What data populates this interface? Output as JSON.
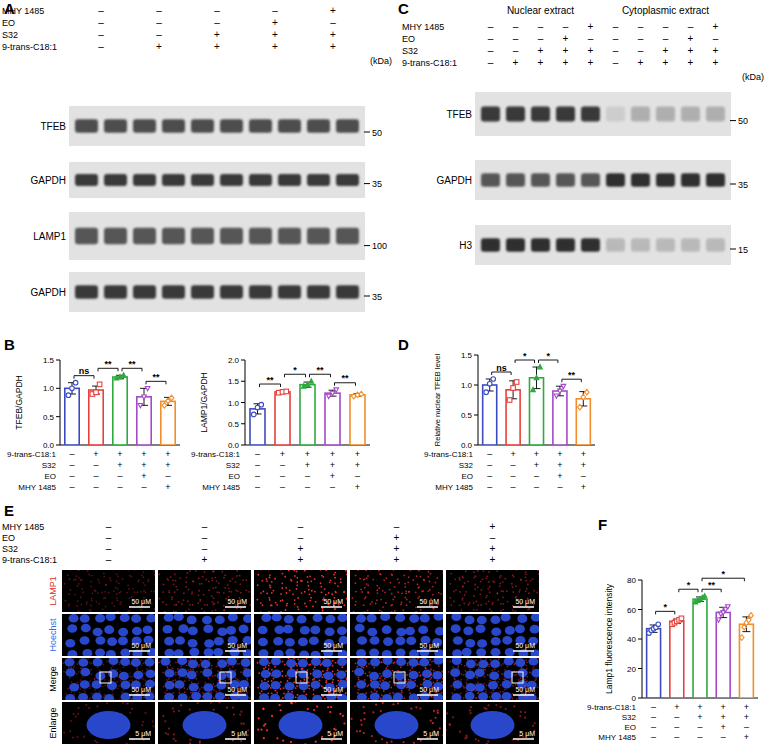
{
  "panel_labels": [
    "A",
    "B",
    "C",
    "D",
    "E",
    "F"
  ],
  "blot_A": {
    "treatments": [
      {
        "name": "MHY 1485",
        "signs": [
          "–",
          "–",
          "–",
          "–",
          "+"
        ]
      },
      {
        "name": "EO",
        "signs": [
          "–",
          "–",
          "–",
          "+",
          "–"
        ]
      },
      {
        "name": "S32",
        "signs": [
          "–",
          "–",
          "+",
          "+",
          "+"
        ]
      },
      {
        "name": "9-trans-C18:1",
        "signs": [
          "–",
          "+",
          "+",
          "+",
          "+"
        ]
      }
    ],
    "unit": "(kDa)",
    "rows": [
      {
        "label": "TFEB",
        "marker": 50
      },
      {
        "label": "GAPDH",
        "marker": 35
      },
      {
        "label": "LAMP1",
        "marker": 100
      },
      {
        "label": "GAPDH",
        "marker": 35
      }
    ]
  },
  "blot_C": {
    "headers": [
      "Nuclear extract",
      "Cytoplasmic extract"
    ],
    "treatments": [
      {
        "name": "MHY 1485",
        "signs": [
          "–",
          "–",
          "–",
          "–",
          "+",
          "–",
          "–",
          "–",
          "–",
          "+"
        ]
      },
      {
        "name": "EO",
        "signs": [
          "–",
          "–",
          "–",
          "+",
          "–",
          "–",
          "–",
          "–",
          "+",
          "–"
        ]
      },
      {
        "name": "S32",
        "signs": [
          "–",
          "–",
          "+",
          "+",
          "+",
          "–",
          "–",
          "+",
          "+",
          "+"
        ]
      },
      {
        "name": "9-trans-C18:1",
        "signs": [
          "–",
          "+",
          "+",
          "+",
          "+",
          "–",
          "+",
          "+",
          "+",
          "+"
        ]
      }
    ],
    "unit": "(kDa)",
    "rows": [
      {
        "label": "TFEB",
        "marker": 50
      },
      {
        "label": "GAPDH",
        "marker": 35
      },
      {
        "label": "H3",
        "marker": 15
      }
    ]
  },
  "images_E": {
    "treatments": [
      {
        "name": "MHY 1485",
        "signs": [
          "–",
          "–",
          "–",
          "–",
          "+"
        ]
      },
      {
        "name": "EO",
        "signs": [
          "–",
          "–",
          "–",
          "+",
          "–"
        ]
      },
      {
        "name": "S32",
        "signs": [
          "–",
          "–",
          "+",
          "+",
          "+"
        ]
      },
      {
        "name": "9-trans-C18:1",
        "signs": [
          "–",
          "+",
          "+",
          "+",
          "+"
        ]
      }
    ],
    "rows": [
      "LAMP1",
      "Hoechst",
      "Merge",
      "Enlarge"
    ],
    "scale_bars": [
      "50 μM",
      "50 μM",
      "50 μM",
      "5 μM"
    ]
  },
  "chart_data": [
    {
      "type": "bar",
      "y_label": "TFEB/GAPDH",
      "categories": [
        null,
        null,
        null,
        null,
        null
      ],
      "values": [
        1.0,
        0.97,
        1.2,
        0.85,
        0.77
      ],
      "errors": [
        0.1,
        0.07,
        0.03,
        0.15,
        0.07
      ],
      "points": [
        [
          0.88,
          1.0,
          1.1
        ],
        [
          0.9,
          0.93,
          1.07
        ],
        [
          1.18,
          1.2,
          1.23
        ],
        [
          0.7,
          0.85,
          1.0
        ],
        [
          0.7,
          0.78,
          0.83
        ]
      ],
      "colors": [
        "#3b4cc0",
        "#e8413b",
        "#2faa3f",
        "#a64ac9",
        "#f28e2b"
      ],
      "marker": [
        "circle",
        "square",
        "triangle",
        "triangle-down",
        "diamond"
      ],
      "ylim": [
        0,
        1.5
      ],
      "yticks": [
        {
          "value": 0,
          "label": "0.0"
        },
        {
          "value": 0.5,
          "label": "0.5"
        },
        {
          "value": 1.0,
          "label": "1.0"
        },
        {
          "value": 1.5,
          "label": "1.5"
        }
      ],
      "conditions": [
        {
          "name": "9-trans-C18:1",
          "signs": [
            "–",
            "+",
            "+",
            "+",
            "+"
          ]
        },
        {
          "name": "S32",
          "signs": [
            "–",
            "–",
            "+",
            "+",
            "+"
          ]
        },
        {
          "name": "EO",
          "signs": [
            "–",
            "–",
            "–",
            "+",
            "–"
          ]
        },
        {
          "name": "MHY 1485",
          "signs": [
            "–",
            "–",
            "–",
            "–",
            "+"
          ]
        }
      ],
      "annotations": [
        {
          "text": "ns",
          "from": 0,
          "to": 1
        },
        {
          "text": "**",
          "from": 1,
          "to": 2
        },
        {
          "text": "**",
          "from": 2,
          "to": 3
        },
        {
          "text": "**",
          "from": 3,
          "to": 4
        }
      ]
    },
    {
      "type": "bar",
      "y_label": "LAMP1/GAPDH",
      "categories": [
        null,
        null,
        null,
        null,
        null
      ],
      "values": [
        0.85,
        1.25,
        1.42,
        1.22,
        1.18
      ],
      "errors": [
        0.12,
        0.02,
        0.06,
        0.07,
        0.03
      ],
      "points": [
        [
          0.72,
          0.88,
          0.95
        ],
        [
          1.23,
          1.25,
          1.26
        ],
        [
          1.38,
          1.42,
          1.5
        ],
        [
          1.15,
          1.22,
          1.3
        ],
        [
          1.15,
          1.18,
          1.2
        ]
      ],
      "colors": [
        "#3b4cc0",
        "#e8413b",
        "#2faa3f",
        "#a64ac9",
        "#f28e2b"
      ],
      "marker": [
        "circle",
        "square",
        "triangle",
        "triangle-down",
        "diamond"
      ],
      "ylim": [
        0,
        2.0
      ],
      "yticks": [
        {
          "value": 0,
          "label": "0.0"
        },
        {
          "value": 0.5,
          "label": "0.5"
        },
        {
          "value": 1.0,
          "label": "1.0"
        },
        {
          "value": 1.5,
          "label": "1.5"
        },
        {
          "value": 2.0,
          "label": "2.0"
        }
      ],
      "conditions": [
        {
          "name": "9-trans-C18:1",
          "signs": [
            "–",
            "+",
            "+",
            "+",
            "+"
          ]
        },
        {
          "name": "S32",
          "signs": [
            "–",
            "–",
            "+",
            "+",
            "+"
          ]
        },
        {
          "name": "EO",
          "signs": [
            "–",
            "–",
            "–",
            "+",
            "–"
          ]
        },
        {
          "name": "MHY 1485",
          "signs": [
            "–",
            "–",
            "–",
            "–",
            "+"
          ]
        }
      ],
      "annotations": [
        {
          "text": "**",
          "from": 0,
          "to": 1
        },
        {
          "text": "*",
          "from": 1,
          "to": 2
        },
        {
          "text": "**",
          "from": 2,
          "to": 3
        },
        {
          "text": "**",
          "from": 3,
          "to": 4
        }
      ]
    },
    {
      "type": "bar",
      "y_label": "Relative nuclear TFEB level",
      "categories": [
        null,
        null,
        null,
        null,
        null
      ],
      "values": [
        1.0,
        0.92,
        1.12,
        0.9,
        0.77
      ],
      "errors": [
        0.1,
        0.15,
        0.18,
        0.08,
        0.12
      ],
      "points": [
        [
          0.88,
          1.02,
          1.1
        ],
        [
          0.75,
          0.95,
          1.05
        ],
        [
          0.92,
          1.12,
          1.3
        ],
        [
          0.82,
          0.9,
          0.98
        ],
        [
          0.63,
          0.8,
          0.88
        ]
      ],
      "colors": [
        "#3b4cc0",
        "#e8413b",
        "#2faa3f",
        "#a64ac9",
        "#f28e2b"
      ],
      "marker": [
        "circle",
        "square",
        "triangle",
        "triangle-down",
        "diamond"
      ],
      "ylim": [
        0,
        1.5
      ],
      "yticks": [
        {
          "value": 0,
          "label": "0.0"
        },
        {
          "value": 0.5,
          "label": "0.5"
        },
        {
          "value": 1.0,
          "label": "1.0"
        },
        {
          "value": 1.5,
          "label": "1.5"
        }
      ],
      "conditions": [
        {
          "name": "9-trans-C18:1",
          "signs": [
            "–",
            "+",
            "+",
            "+",
            "+"
          ]
        },
        {
          "name": "S32",
          "signs": [
            "–",
            "–",
            "+",
            "+",
            "+"
          ]
        },
        {
          "name": "EO",
          "signs": [
            "–",
            "–",
            "–",
            "+",
            "–"
          ]
        },
        {
          "name": "MHY 1485",
          "signs": [
            "–",
            "–",
            "–",
            "–",
            "+"
          ]
        }
      ],
      "annotations": [
        {
          "text": "ns",
          "from": 0,
          "to": 1
        },
        {
          "text": "*",
          "from": 1,
          "to": 2
        },
        {
          "text": "*",
          "from": 2,
          "to": 3
        },
        {
          "text": "**",
          "from": 3,
          "to": 4
        }
      ]
    },
    {
      "type": "bar",
      "y_label": "Lamp1 fluorescence intensity",
      "categories": [
        null,
        null,
        null,
        null,
        null
      ],
      "values": [
        47,
        52,
        67,
        58,
        50
      ],
      "errors": [
        2.5,
        1.5,
        1.5,
        3.5,
        5
      ],
      "points": [
        [
          44,
          46,
          47,
          48,
          50
        ],
        [
          50,
          51,
          52,
          53,
          54
        ],
        [
          65,
          66,
          67,
          68,
          69
        ],
        [
          53,
          57,
          58,
          60,
          62
        ],
        [
          41,
          48,
          51,
          53,
          56
        ]
      ],
      "colors": [
        "#3b4cc0",
        "#e8413b",
        "#2faa3f",
        "#a64ac9",
        "#f28e2b"
      ],
      "marker": [
        "circle",
        "square",
        "triangle",
        "triangle-down",
        "diamond"
      ],
      "ylim": [
        0,
        80
      ],
      "yticks": [
        0,
        20,
        40,
        60,
        80
      ],
      "conditions": [
        {
          "name": "9-trans-C18:1",
          "signs": [
            "–",
            "+",
            "+",
            "+",
            "+"
          ]
        },
        {
          "name": "S32",
          "signs": [
            "–",
            "–",
            "+",
            "+",
            "+"
          ]
        },
        {
          "name": "EO",
          "signs": [
            "–",
            "–",
            "–",
            "+",
            "–"
          ]
        },
        {
          "name": "MHY 1485",
          "signs": [
            "–",
            "–",
            "–",
            "–",
            "+"
          ]
        }
      ],
      "annotations": [
        {
          "text": "*",
          "from": 0,
          "to": 1
        },
        {
          "text": "*",
          "from": 1,
          "to": 2
        },
        {
          "text": "**",
          "from": 2,
          "to": 3
        },
        {
          "text": "*",
          "from": 2,
          "to": 4
        }
      ]
    }
  ]
}
